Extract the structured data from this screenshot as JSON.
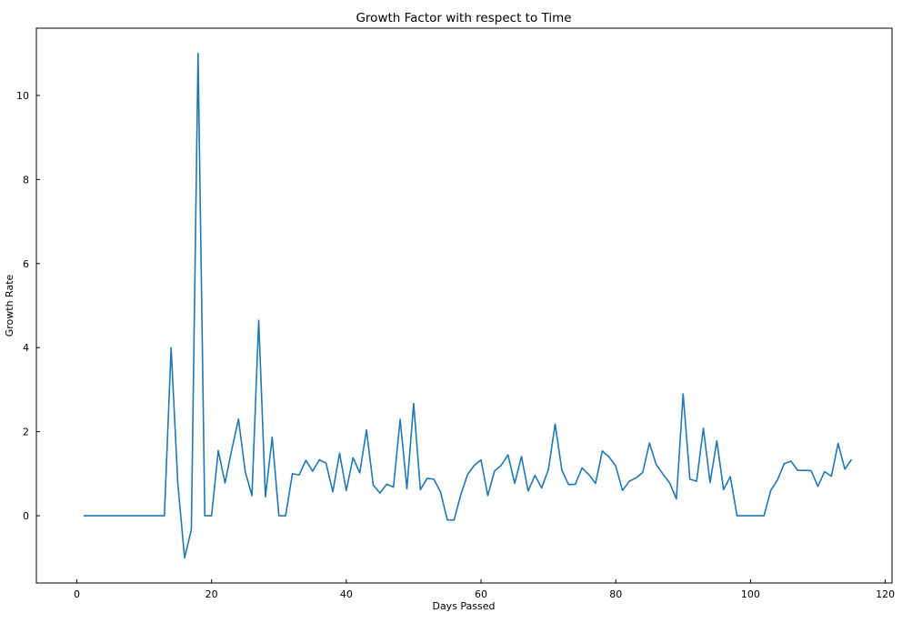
{
  "chart_data": {
    "type": "line",
    "title": "Growth Factor with respect to Time",
    "xlabel": "Days Passed",
    "ylabel": "Growth Rate",
    "xlim": [
      -6,
      121
    ],
    "ylim": [
      -1.6,
      11.6
    ],
    "xticks": [
      0,
      20,
      40,
      60,
      80,
      100,
      120
    ],
    "yticks": [
      0,
      2,
      4,
      6,
      8,
      10
    ],
    "xtick_labels": [
      "0",
      "20",
      "40",
      "60",
      "80",
      "100",
      "120"
    ],
    "ytick_labels": [
      "0",
      "2",
      "4",
      "6",
      "8",
      "10"
    ],
    "grid": false,
    "series": [
      {
        "color": "#1f77b4",
        "x": [
          1,
          2,
          3,
          4,
          5,
          6,
          7,
          8,
          9,
          10,
          11,
          12,
          13,
          14,
          15,
          16,
          17,
          18,
          19,
          20,
          21,
          22,
          23,
          24,
          25,
          26,
          27,
          28,
          29,
          30,
          31,
          32,
          33,
          34,
          35,
          36,
          37,
          38,
          39,
          40,
          41,
          42,
          43,
          44,
          45,
          46,
          47,
          48,
          49,
          50,
          51,
          52,
          53,
          54,
          55,
          56,
          57,
          58,
          59,
          60,
          61,
          62,
          63,
          64,
          65,
          66,
          67,
          68,
          69,
          70,
          71,
          72,
          73,
          74,
          75,
          76,
          77,
          78,
          79,
          80,
          81,
          82,
          83,
          84,
          85,
          86,
          87,
          88,
          89,
          90,
          91,
          92,
          93,
          94,
          95,
          96,
          97,
          98,
          99,
          100,
          101,
          102,
          103,
          104,
          105,
          106,
          107,
          108,
          109,
          110,
          111,
          112,
          113,
          114,
          115
        ],
        "y": [
          0,
          0,
          0,
          0,
          0,
          0,
          0,
          0,
          0,
          0,
          0,
          0,
          0,
          4.0,
          0.75,
          -1.0,
          -0.33,
          11.0,
          0,
          0,
          1.55,
          0.78,
          1.57,
          2.3,
          1.05,
          0.48,
          4.65,
          0.45,
          1.87,
          0,
          0,
          1.0,
          0.97,
          1.32,
          1.06,
          1.33,
          1.25,
          0.57,
          1.49,
          0.6,
          1.38,
          1.02,
          2.04,
          0.73,
          0.54,
          0.75,
          0.68,
          2.29,
          0.64,
          2.67,
          0.62,
          0.89,
          0.87,
          0.56,
          -0.1,
          -0.1,
          0.5,
          0.98,
          1.2,
          1.33,
          0.48,
          1.06,
          1.2,
          1.45,
          0.77,
          1.41,
          0.59,
          0.96,
          0.66,
          1.1,
          2.18,
          1.08,
          0.74,
          0.75,
          1.14,
          0.98,
          0.77,
          1.54,
          1.4,
          1.18,
          0.6,
          0.82,
          0.9,
          1.03,
          1.73,
          1.22,
          0.99,
          0.78,
          0.4,
          2.9,
          0.87,
          0.82,
          2.08,
          0.79,
          1.78,
          0.62,
          0.93,
          0,
          0,
          0,
          0,
          0,
          0.6,
          0.85,
          1.24,
          1.3,
          1.08,
          1.08,
          1.07,
          0.7,
          1.05,
          0.94,
          1.72,
          1.11,
          1.34
        ]
      }
    ]
  }
}
